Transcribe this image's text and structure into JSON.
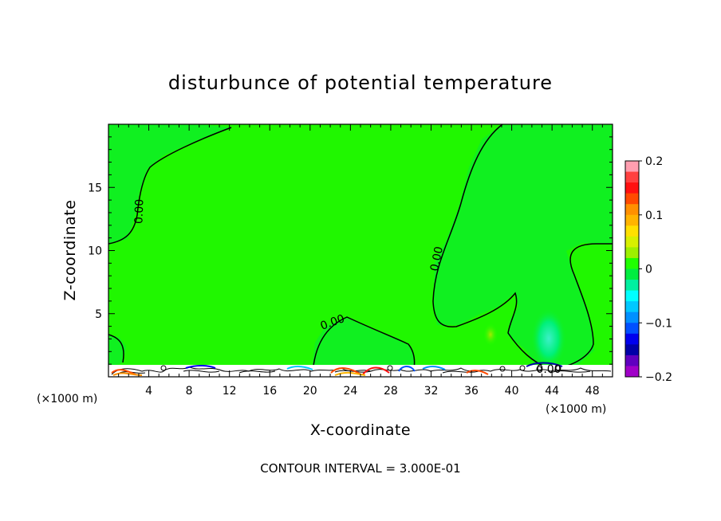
{
  "chart_data": {
    "type": "heatmap",
    "title": "disturbunce of potential temperature",
    "xlabel": "X-coordinate",
    "ylabel": "Z-coordinate",
    "x_unit_label": "(×1000 m)",
    "note": "CONTOUR INTERVAL = 3.000E-01",
    "xlim": [
      0,
      50
    ],
    "ylim": [
      0,
      20
    ],
    "x_ticks": [
      4,
      8,
      12,
      16,
      20,
      24,
      28,
      32,
      36,
      40,
      44,
      48
    ],
    "y_ticks": [
      5,
      10,
      15
    ],
    "x_tick_labels": [
      "4",
      "8",
      "12",
      "16",
      "20",
      "24",
      "28",
      "32",
      "36",
      "40",
      "44",
      "48"
    ],
    "y_tick_labels": [
      "5",
      "10",
      "15"
    ],
    "colorbar": {
      "range": [
        -0.2,
        0.2
      ],
      "ticks": [
        0.2,
        0.1,
        0,
        -0.1,
        -0.2
      ],
      "tick_labels": [
        "0.2",
        "0.1",
        "0",
        "−0.1",
        "−0.2"
      ],
      "colors": [
        "#ff9eb0",
        "#ff4040",
        "#ff1010",
        "#ff4a00",
        "#ff9000",
        "#ffb400",
        "#ffe000",
        "#d8f000",
        "#9ef000",
        "#20ff00",
        "#00ee40",
        "#00f0a0",
        "#00ffff",
        "#00c8ff",
        "#0090ff",
        "#0050ff",
        "#0000ee",
        "#0000a8",
        "#6000c0",
        "#a000c8"
      ]
    },
    "contour_labels": [
      {
        "text": "0.00",
        "x": 3.0,
        "z": 13.2,
        "rotate": -88
      },
      {
        "text": "0.00",
        "x": 32.6,
        "z": 9.3,
        "rotate": -78
      },
      {
        "text": "0.00",
        "x": 22.3,
        "z": 4.1,
        "rotate": -20
      },
      {
        "text": "0.00",
        "x": 43.6,
        "z": 0.3,
        "rotate": 0
      }
    ],
    "background_value": 0.0,
    "features": [
      {
        "x": 43.8,
        "z": 3.0,
        "value": -0.06
      },
      {
        "x": 38.0,
        "z": 3.5,
        "value": 0.03
      }
    ]
  }
}
